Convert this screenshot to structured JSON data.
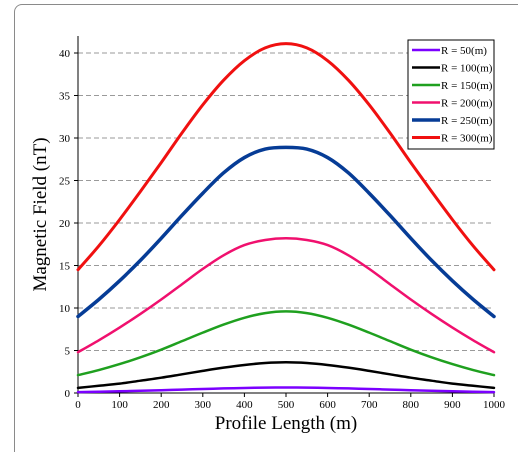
{
  "chart_data": {
    "type": "line",
    "title": "",
    "xlabel": "Profile Length (m)",
    "ylabel": "Magnetic Field (nT)",
    "xlim": [
      0,
      1000
    ],
    "ylim": [
      0,
      42
    ],
    "x_ticks": [
      0,
      100,
      200,
      300,
      400,
      500,
      600,
      700,
      800,
      900,
      1000
    ],
    "y_ticks": [
      0,
      5,
      10,
      15,
      20,
      25,
      30,
      35,
      40
    ],
    "grid": "horizontal dashed",
    "legend_position": "top-right",
    "x": [
      0,
      50,
      100,
      150,
      200,
      250,
      300,
      350,
      400,
      450,
      500,
      550,
      600,
      650,
      700,
      750,
      800,
      850,
      900,
      950,
      1000
    ],
    "series": [
      {
        "name": "R = 50(m)",
        "color": "#7B00FF",
        "width": 2.5,
        "values": [
          0.1,
          0.15,
          0.2,
          0.27,
          0.33,
          0.4,
          0.47,
          0.54,
          0.59,
          0.63,
          0.65,
          0.63,
          0.59,
          0.54,
          0.47,
          0.4,
          0.33,
          0.27,
          0.2,
          0.15,
          0.1
        ]
      },
      {
        "name": "R = 100(m)",
        "color": "#000000",
        "width": 2.5,
        "values": [
          0.6,
          0.85,
          1.1,
          1.45,
          1.8,
          2.2,
          2.6,
          2.98,
          3.3,
          3.53,
          3.62,
          3.53,
          3.3,
          2.98,
          2.6,
          2.2,
          1.8,
          1.45,
          1.1,
          0.85,
          0.6
        ]
      },
      {
        "name": "R = 150(m)",
        "color": "#1FA01F",
        "width": 2.5,
        "values": [
          2.1,
          2.7,
          3.4,
          4.2,
          5.1,
          6.1,
          7.1,
          8.05,
          8.85,
          9.4,
          9.6,
          9.4,
          8.85,
          8.05,
          7.1,
          6.1,
          5.1,
          4.2,
          3.4,
          2.7,
          2.1
        ]
      },
      {
        "name": "R = 200(m)",
        "color": "#F0106E",
        "width": 2.5,
        "values": [
          4.8,
          6.2,
          7.7,
          9.3,
          11.0,
          12.8,
          14.6,
          16.2,
          17.4,
          18.0,
          18.2,
          18.0,
          17.4,
          16.2,
          14.6,
          12.8,
          11.0,
          9.3,
          7.7,
          6.2,
          4.8
        ]
      },
      {
        "name": "R = 250(m)",
        "color": "#063C96",
        "width": 3.5,
        "values": [
          9.0,
          11.0,
          13.2,
          15.6,
          18.2,
          20.9,
          23.5,
          25.9,
          27.7,
          28.7,
          28.9,
          28.7,
          27.7,
          25.9,
          23.5,
          20.9,
          18.2,
          15.6,
          13.2,
          11.0,
          9.0
        ]
      },
      {
        "name": "R = 300(m)",
        "color": "#F01010",
        "width": 3,
        "values": [
          14.5,
          17.3,
          20.4,
          23.7,
          27.1,
          30.6,
          33.9,
          36.8,
          39.1,
          40.6,
          41.1,
          40.6,
          39.1,
          36.8,
          33.9,
          30.6,
          27.1,
          23.7,
          20.4,
          17.3,
          14.5
        ]
      }
    ]
  }
}
